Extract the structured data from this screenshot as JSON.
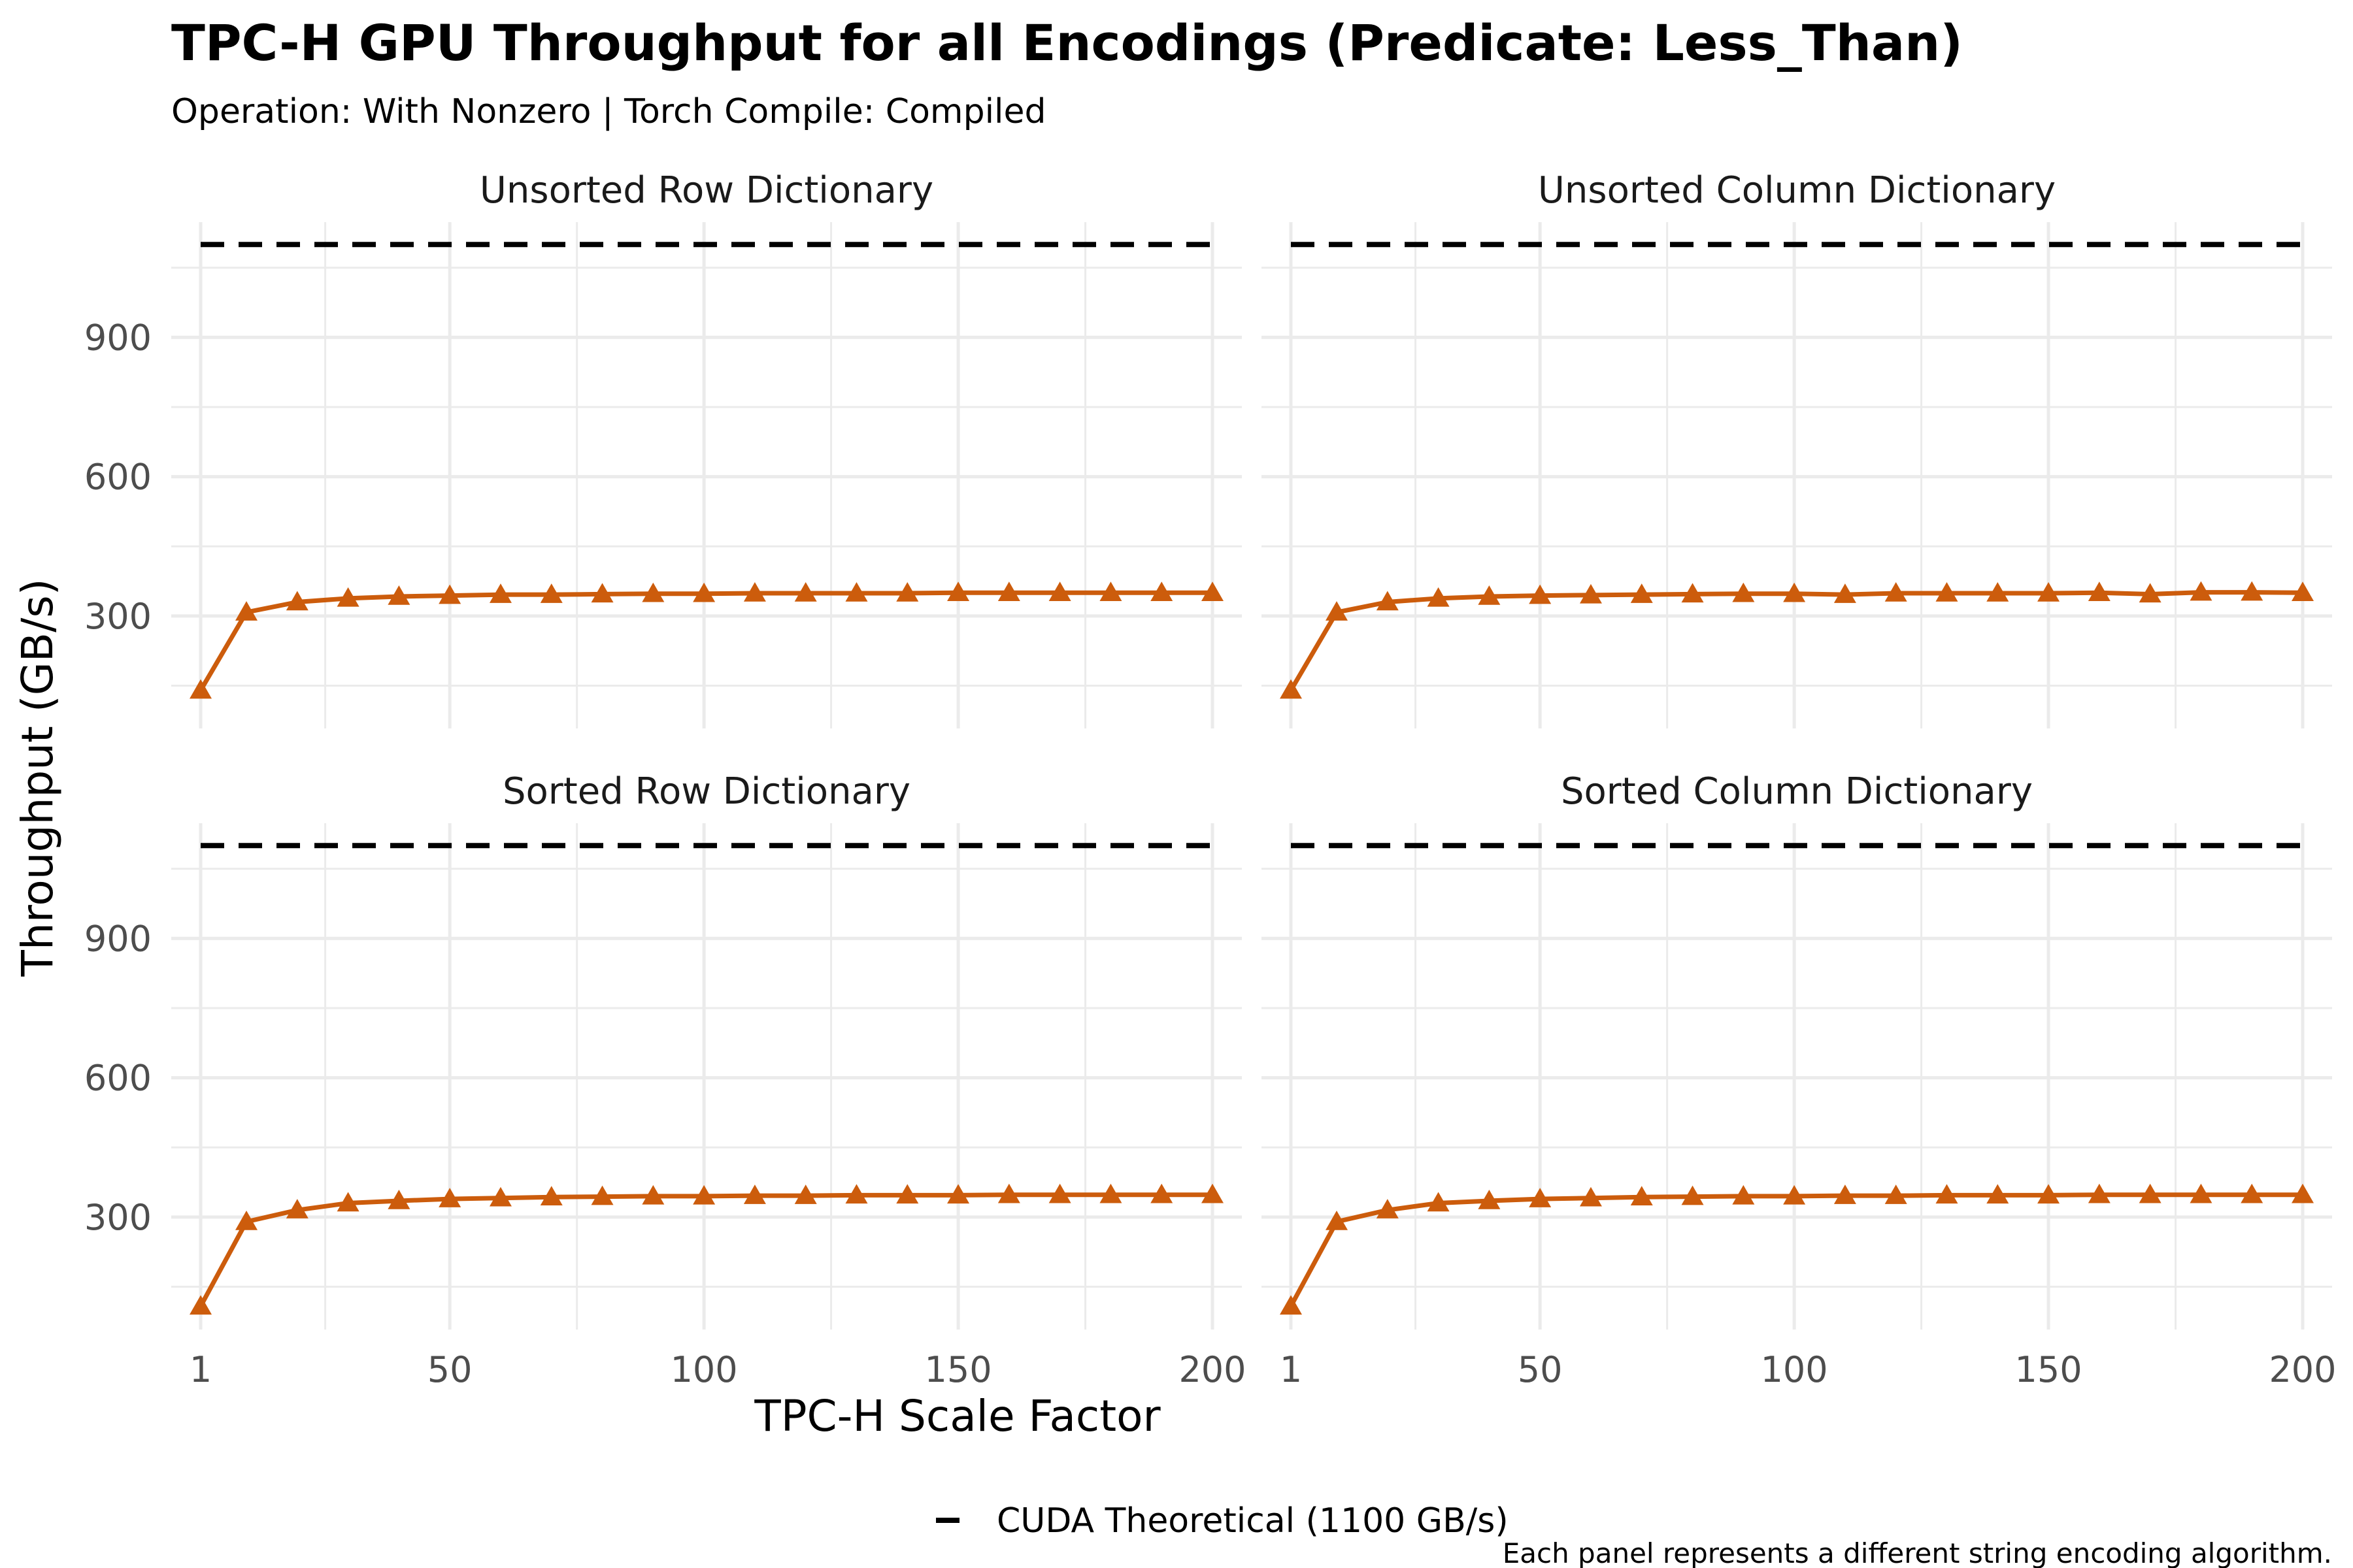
{
  "title": "TPC-H GPU Throughput for all Encodings (Predicate: Less_Than)",
  "subtitle": "Operation: With Nonzero | Torch Compile: Compiled",
  "xlabel": "TPC-H Scale Factor",
  "ylabel": "Throughput (GB/s)",
  "legend": {
    "label": "CUDA Theoretical (1100 GB/s)"
  },
  "caption": "Each panel represents a different string encoding algorithm.",
  "colors": {
    "series": "#cc5c0c",
    "reference": "#000000",
    "grid": "#ebebeb"
  },
  "chart_data": {
    "type": "line",
    "facets": [
      "Unsorted Row Dictionary",
      "Unsorted Column Dictionary",
      "Sorted Row Dictionary",
      "Sorted Column Dictionary"
    ],
    "layout": "2x2",
    "x": [
      1,
      10,
      20,
      30,
      40,
      50,
      60,
      70,
      80,
      90,
      100,
      110,
      120,
      130,
      140,
      150,
      160,
      170,
      180,
      190,
      200
    ],
    "x_ticks": [
      1,
      50,
      100,
      150,
      200
    ],
    "xlim": [
      1,
      200
    ],
    "y_ticks": [
      300,
      600,
      900
    ],
    "ylim": [
      100,
      1120
    ],
    "marker": "triangle",
    "reference_line": {
      "y": 1100,
      "style": "dashed"
    },
    "panels": [
      {
        "name": "Unsorted Row Dictionary",
        "values": [
          140,
          308,
          330,
          338,
          342,
          344,
          346,
          346,
          347,
          348,
          348,
          349,
          349,
          349,
          349,
          350,
          350,
          350,
          350,
          350,
          350
        ]
      },
      {
        "name": "Unsorted Column Dictionary",
        "values": [
          140,
          308,
          330,
          338,
          342,
          344,
          345,
          346,
          347,
          348,
          348,
          346,
          349,
          349,
          349,
          349,
          350,
          347,
          351,
          351,
          350
        ]
      },
      {
        "name": "Sorted Row Dictionary",
        "values": [
          108,
          290,
          315,
          330,
          335,
          339,
          341,
          343,
          344,
          345,
          345,
          346,
          346,
          347,
          347,
          347,
          348,
          348,
          348,
          348,
          348
        ]
      },
      {
        "name": "Sorted Column Dictionary",
        "values": [
          108,
          290,
          315,
          330,
          335,
          339,
          341,
          343,
          344,
          345,
          345,
          346,
          346,
          347,
          347,
          347,
          348,
          348,
          348,
          348,
          348
        ]
      }
    ]
  }
}
